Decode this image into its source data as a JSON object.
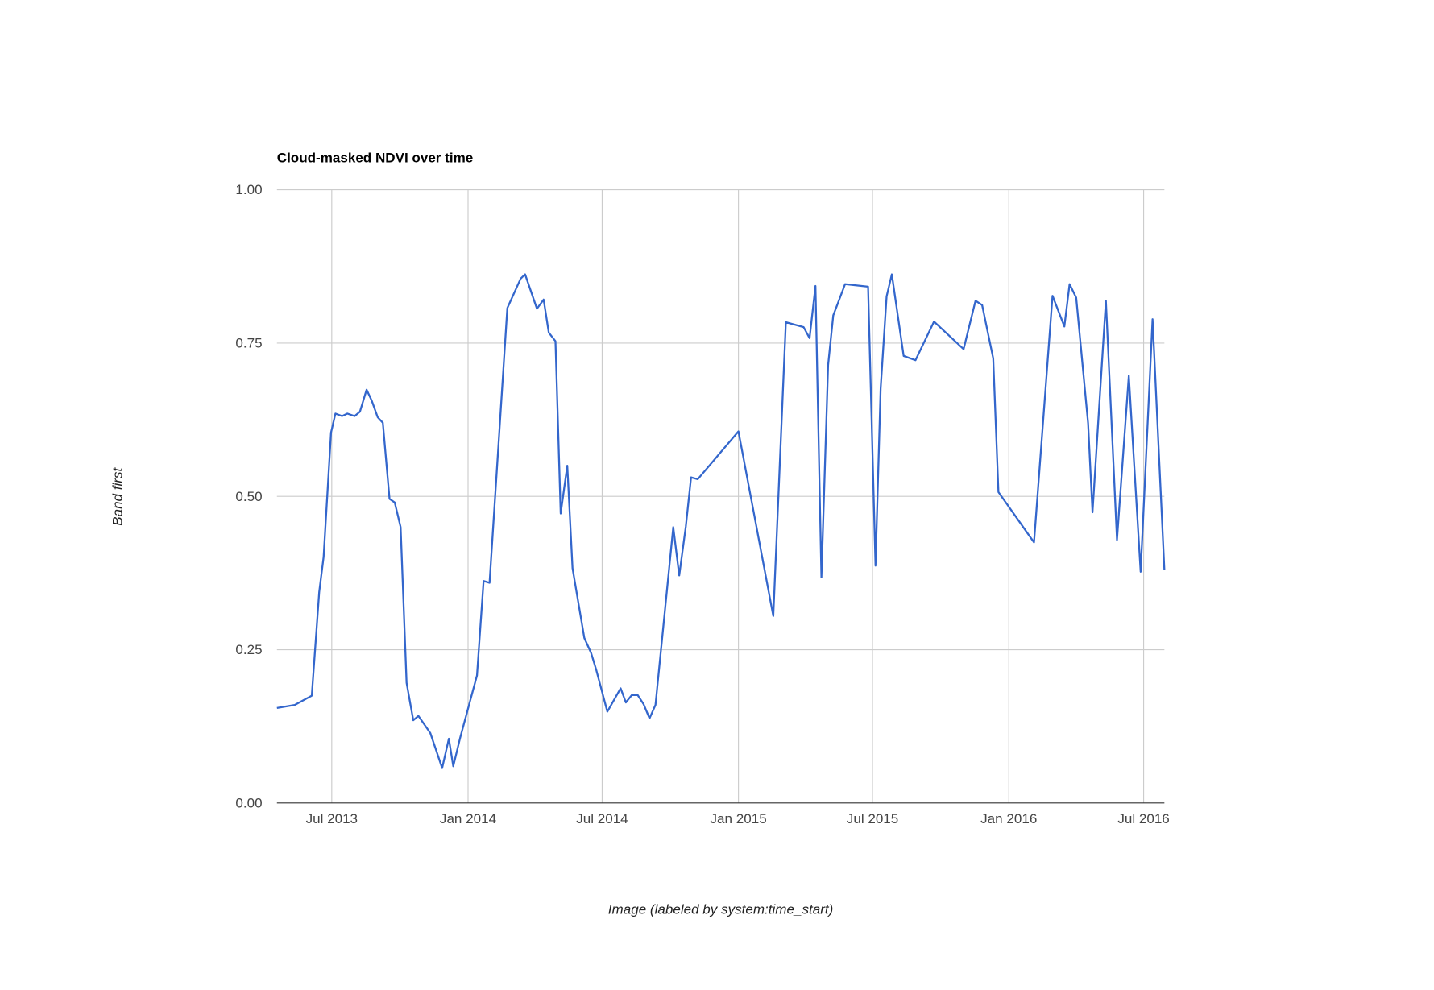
{
  "chart_data": {
    "type": "line",
    "title": "Cloud-masked NDVI over time",
    "xlabel": "Image (labeled by system:time_start)",
    "ylabel": "Band first",
    "xlim": [
      "2013-04-18",
      "2016-07-29"
    ],
    "ylim": [
      0,
      1
    ],
    "x_ticks": [
      {
        "date": "2013-07-01",
        "label": "Jul 2013"
      },
      {
        "date": "2014-01-01",
        "label": "Jan 2014"
      },
      {
        "date": "2014-07-01",
        "label": "Jul 2014"
      },
      {
        "date": "2015-01-01",
        "label": "Jan 2015"
      },
      {
        "date": "2015-07-01",
        "label": "Jul 2015"
      },
      {
        "date": "2016-01-01",
        "label": "Jan 2016"
      },
      {
        "date": "2016-07-01",
        "label": "Jul 2016"
      }
    ],
    "y_ticks": [
      {
        "value": 0,
        "label": "0.00"
      },
      {
        "value": 0.25,
        "label": "0.25"
      },
      {
        "value": 0.5,
        "label": "0.50"
      },
      {
        "value": 0.75,
        "label": "0.75"
      },
      {
        "value": 1,
        "label": "1.00"
      }
    ],
    "grid": true,
    "legend": "none",
    "colors": {
      "line": "#3366cc",
      "grid": "#cccccc",
      "baseline": "#333333"
    },
    "series": [
      {
        "x": [
          "2013-04-18",
          "2013-05-12",
          "2013-06-04",
          "2013-06-14",
          "2013-06-20",
          "2013-06-30",
          "2013-07-06",
          "2013-07-15",
          "2013-07-22",
          "2013-08-01",
          "2013-08-08",
          "2013-08-17",
          "2013-08-24",
          "2013-09-01",
          "2013-09-08",
          "2013-09-17",
          "2013-09-24",
          "2013-10-02",
          "2013-10-10",
          "2013-10-19",
          "2013-10-26",
          "2013-11-11",
          "2013-11-27",
          "2013-12-06",
          "2013-12-12",
          "2013-12-21",
          "2014-01-13",
          "2014-01-22",
          "2014-01-30",
          "2014-02-23",
          "2014-03-13",
          "2014-03-19",
          "2014-04-04",
          "2014-04-13",
          "2014-04-20",
          "2014-04-29",
          "2014-05-06",
          "2014-05-15",
          "2014-05-22",
          "2014-06-07",
          "2014-06-16",
          "2014-06-23",
          "2014-07-08",
          "2014-07-26",
          "2014-08-02",
          "2014-08-10",
          "2014-08-18",
          "2014-08-26",
          "2014-09-03",
          "2014-09-11",
          "2014-10-05",
          "2014-10-13",
          "2014-10-22",
          "2014-10-29",
          "2014-11-07",
          "2015-01-01",
          "2015-02-17",
          "2015-03-06",
          "2015-03-30",
          "2015-04-07",
          "2015-04-15",
          "2015-04-23",
          "2015-05-02",
          "2015-05-09",
          "2015-05-25",
          "2015-06-25",
          "2015-07-05",
          "2015-07-12",
          "2015-07-20",
          "2015-07-27",
          "2015-08-12",
          "2015-08-28",
          "2015-09-22",
          "2015-11-01",
          "2015-11-17",
          "2015-11-26",
          "2015-12-11",
          "2015-12-18",
          "2016-02-04",
          "2016-02-29",
          "2016-03-16",
          "2016-03-23",
          "2016-04-01",
          "2016-04-17",
          "2016-04-23",
          "2016-05-11",
          "2016-05-26",
          "2016-06-11",
          "2016-06-27",
          "2016-07-13",
          "2016-07-29"
        ],
        "y": [
          0.155,
          0.16,
          0.175,
          0.344,
          0.401,
          0.604,
          0.635,
          0.631,
          0.635,
          0.631,
          0.638,
          0.674,
          0.656,
          0.629,
          0.62,
          0.496,
          0.49,
          0.45,
          0.196,
          0.135,
          0.142,
          0.114,
          0.057,
          0.105,
          0.06,
          0.105,
          0.208,
          0.362,
          0.359,
          0.807,
          0.855,
          0.862,
          0.806,
          0.821,
          0.767,
          0.753,
          0.472,
          0.55,
          0.383,
          0.269,
          0.245,
          0.217,
          0.149,
          0.187,
          0.164,
          0.176,
          0.176,
          0.161,
          0.138,
          0.16,
          0.45,
          0.371,
          0.451,
          0.531,
          0.528,
          0.606,
          0.305,
          0.784,
          0.776,
          0.758,
          0.843,
          0.368,
          0.714,
          0.795,
          0.846,
          0.842,
          0.387,
          0.676,
          0.826,
          0.862,
          0.729,
          0.722,
          0.785,
          0.74,
          0.819,
          0.812,
          0.725,
          0.507,
          0.425,
          0.827,
          0.777,
          0.846,
          0.824,
          0.619,
          0.474,
          0.819,
          0.429,
          0.697,
          0.377,
          0.789,
          0.38
        ]
      }
    ]
  }
}
